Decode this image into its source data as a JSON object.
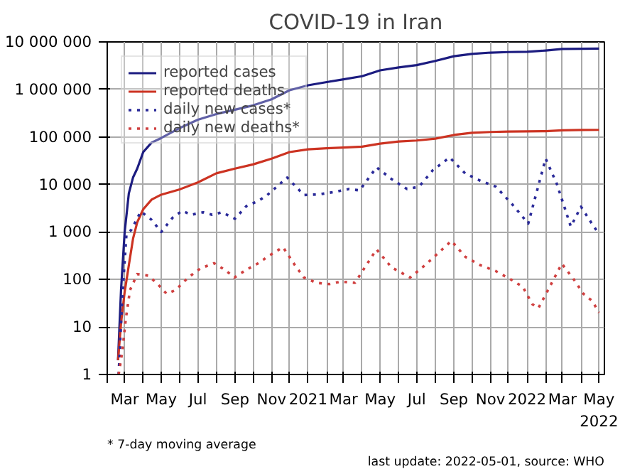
{
  "chart_data": {
    "type": "line",
    "title": "COVID-19 in Iran",
    "log": "y",
    "grid": true,
    "legend": "top left",
    "xlim": [
      "2020-02-01",
      "2022-05-10"
    ],
    "ylim": [
      1,
      10000000
    ],
    "xticks": [
      {
        "value": "2020-02-01",
        "label": null
      },
      {
        "value": "2020-03-01",
        "label": "Mar"
      },
      {
        "value": "2020-04-01",
        "label": null
      },
      {
        "value": "2020-05-01",
        "label": "May"
      },
      {
        "value": "2020-06-01",
        "label": null
      },
      {
        "value": "2020-07-01",
        "label": "Jul"
      },
      {
        "value": "2020-08-01",
        "label": null
      },
      {
        "value": "2020-09-01",
        "label": "Sep"
      },
      {
        "value": "2020-10-01",
        "label": null
      },
      {
        "value": "2020-11-01",
        "label": "Nov"
      },
      {
        "value": "2020-12-01",
        "label": null
      },
      {
        "value": "2021-01-01",
        "label": "2021"
      },
      {
        "value": "2021-02-01",
        "label": null
      },
      {
        "value": "2021-03-01",
        "label": "Mar"
      },
      {
        "value": "2021-04-01",
        "label": null
      },
      {
        "value": "2021-05-01",
        "label": "May"
      },
      {
        "value": "2021-06-01",
        "label": null
      },
      {
        "value": "2021-07-01",
        "label": "Jul"
      },
      {
        "value": "2021-08-01",
        "label": null
      },
      {
        "value": "2021-09-01",
        "label": "Sep"
      },
      {
        "value": "2021-10-01",
        "label": null
      },
      {
        "value": "2021-11-01",
        "label": "Nov"
      },
      {
        "value": "2021-12-01",
        "label": null
      },
      {
        "value": "2022-01-01",
        "label": "2022"
      },
      {
        "value": "2022-02-01",
        "label": null
      },
      {
        "value": "2022-03-01",
        "label": "Mar"
      },
      {
        "value": "2022-04-01",
        "label": null
      },
      {
        "value": "2022-05-01",
        "label": "May\n2022"
      }
    ],
    "yticks": [
      {
        "value": 1,
        "label": "1"
      },
      {
        "value": 10,
        "label": "10"
      },
      {
        "value": 100,
        "label": "100"
      },
      {
        "value": 1000,
        "label": "1 000"
      },
      {
        "value": 10000,
        "label": "10 000"
      },
      {
        "value": 100000,
        "label": "100 000"
      },
      {
        "value": 1000000,
        "label": "1 000 000"
      },
      {
        "value": 10000000,
        "label": "10 000 000"
      }
    ],
    "annotations": [
      "* 7-day moving average",
      "last update: 2022-05-01, source: WHO"
    ],
    "series": [
      {
        "name": "reported cases",
        "color": "#1c1c80",
        "line_style": "solid",
        "x": [
          "2020-02-19",
          "2020-02-24",
          "2020-03-01",
          "2020-03-08",
          "2020-03-15",
          "2020-03-22",
          "2020-04-01",
          "2020-04-15",
          "2020-05-01",
          "2020-06-01",
          "2020-07-01",
          "2020-08-01",
          "2020-09-01",
          "2020-10-01",
          "2020-11-01",
          "2020-12-01",
          "2021-01-01",
          "2021-02-01",
          "2021-03-01",
          "2021-04-01",
          "2021-05-01",
          "2021-06-01",
          "2021-07-01",
          "2021-08-01",
          "2021-09-01",
          "2021-10-01",
          "2021-11-01",
          "2021-12-01",
          "2022-01-01",
          "2022-02-01",
          "2022-03-01",
          "2022-04-01",
          "2022-05-01"
        ],
        "values": [
          2,
          60,
          980,
          6500,
          14000,
          21600,
          48000,
          76000,
          95000,
          154000,
          230000,
          304000,
          375000,
          461000,
          620000,
          962000,
          1225000,
          1430000,
          1630000,
          1900000,
          2520000,
          2900000,
          3250000,
          3980000,
          5000000,
          5600000,
          5960000,
          6120000,
          6200000,
          6600000,
          7100000,
          7200000,
          7230000
        ]
      },
      {
        "name": "reported deaths",
        "color": "#cc3322",
        "line_style": "solid",
        "x": [
          "2020-02-19",
          "2020-02-24",
          "2020-03-01",
          "2020-03-08",
          "2020-03-15",
          "2020-03-22",
          "2020-04-01",
          "2020-04-15",
          "2020-05-01",
          "2020-06-01",
          "2020-07-01",
          "2020-08-01",
          "2020-09-01",
          "2020-10-01",
          "2020-11-01",
          "2020-12-01",
          "2021-01-01",
          "2021-02-01",
          "2021-03-01",
          "2021-04-01",
          "2021-05-01",
          "2021-06-01",
          "2021-07-01",
          "2021-08-01",
          "2021-09-01",
          "2021-10-01",
          "2021-11-01",
          "2021-12-01",
          "2022-01-01",
          "2022-02-01",
          "2022-03-01",
          "2022-04-01",
          "2022-05-01"
        ],
        "values": [
          2,
          12,
          54,
          200,
          720,
          1600,
          3000,
          4800,
          6100,
          7900,
          11000,
          17200,
          21600,
          26400,
          35000,
          48000,
          55000,
          58000,
          60000,
          62600,
          72500,
          80000,
          84000,
          92000,
          110000,
          122000,
          127000,
          130000,
          131000,
          132000,
          138000,
          140000,
          141000
        ]
      },
      {
        "name": "daily new cases*",
        "color": "#2a2a99",
        "line_style": "dotted",
        "x": [
          "2020-02-20",
          "2020-02-26",
          "2020-03-04",
          "2020-03-12",
          "2020-03-28",
          "2020-04-15",
          "2020-05-01",
          "2020-05-20",
          "2020-06-05",
          "2020-06-20",
          "2020-07-10",
          "2020-07-25",
          "2020-08-10",
          "2020-09-01",
          "2020-09-20",
          "2020-10-10",
          "2020-10-25",
          "2020-11-27",
          "2020-12-25",
          "2021-01-20",
          "2021-02-15",
          "2021-03-10",
          "2021-03-28",
          "2021-04-25",
          "2021-05-20",
          "2021-06-15",
          "2021-07-05",
          "2021-07-28",
          "2021-08-25",
          "2021-09-20",
          "2021-10-15",
          "2021-11-10",
          "2021-12-10",
          "2022-01-03",
          "2022-02-01",
          "2022-02-20",
          "2022-03-15",
          "2022-04-01",
          "2022-04-15",
          "2022-05-01"
        ],
        "values": [
          1,
          40,
          900,
          1100,
          2700,
          1800,
          1000,
          2000,
          2800,
          2300,
          2600,
          2300,
          2600,
          1900,
          3500,
          4500,
          6000,
          14000,
          6000,
          6200,
          7000,
          8000,
          7500,
          23000,
          13000,
          8000,
          9000,
          20000,
          37000,
          17000,
          12000,
          9000,
          3500,
          1500,
          35000,
          10000,
          1300,
          3400,
          1800,
          900
        ]
      },
      {
        "name": "daily new deaths*",
        "color": "#d04040",
        "line_style": "dotted",
        "x": [
          "2020-02-20",
          "2020-02-26",
          "2020-03-03",
          "2020-03-10",
          "2020-03-22",
          "2020-04-10",
          "2020-04-25",
          "2020-05-10",
          "2020-05-25",
          "2020-06-15",
          "2020-07-05",
          "2020-07-28",
          "2020-08-15",
          "2020-08-31",
          "2020-09-20",
          "2020-10-10",
          "2020-10-25",
          "2020-11-20",
          "2020-12-10",
          "2020-12-25",
          "2021-01-15",
          "2021-02-05",
          "2021-02-25",
          "2021-03-20",
          "2021-04-25",
          "2021-05-20",
          "2021-06-20",
          "2021-07-15",
          "2021-08-28",
          "2021-09-20",
          "2021-10-15",
          "2021-11-10",
          "2021-12-05",
          "2021-12-25",
          "2022-01-10",
          "2022-01-20",
          "2022-02-05",
          "2022-02-28",
          "2022-03-20",
          "2022-04-05",
          "2022-04-20",
          "2022-05-01"
        ],
        "values": [
          1,
          3,
          15,
          60,
          130,
          120,
          80,
          50,
          60,
          110,
          170,
          220,
          160,
          110,
          160,
          220,
          300,
          480,
          200,
          110,
          85,
          80,
          90,
          85,
          430,
          180,
          110,
          200,
          650,
          300,
          200,
          150,
          100,
          70,
          30,
          25,
          60,
          215,
          100,
          50,
          35,
          20
        ]
      }
    ]
  }
}
